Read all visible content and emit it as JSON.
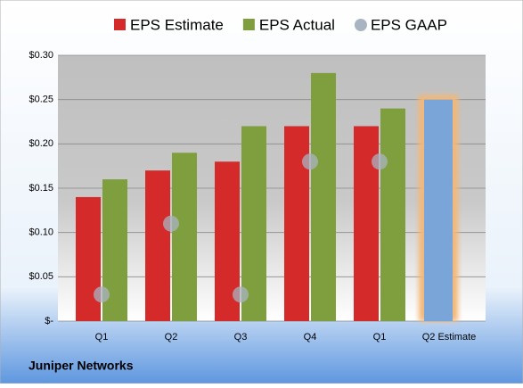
{
  "chart_data": {
    "type": "bar",
    "title": "Juniper Networks",
    "categories": [
      "Q1",
      "Q2",
      "Q3",
      "Q4",
      "Q1",
      "Q2 Estimate"
    ],
    "series": [
      {
        "name": "EPS Estimate",
        "color": "#d42a2a",
        "values": [
          0.14,
          0.17,
          0.18,
          0.22,
          0.22,
          null
        ]
      },
      {
        "name": "EPS Actual",
        "color": "#7f9e3e",
        "values": [
          0.16,
          0.19,
          0.22,
          0.28,
          0.24,
          null
        ]
      },
      {
        "name": "EPS GAAP",
        "color": "#a9b3c2",
        "values": [
          0.03,
          0.11,
          0.03,
          0.18,
          0.18,
          null
        ]
      }
    ],
    "projection": {
      "value": 0.25,
      "color": "#7aa5d8",
      "glow": "#f3b777"
    },
    "ylim": [
      0,
      0.3
    ],
    "yticks": [
      {
        "value": 0,
        "label": "$-"
      },
      {
        "value": 0.05,
        "label": "$0.05"
      },
      {
        "value": 0.1,
        "label": "$0.10"
      },
      {
        "value": 0.15,
        "label": "$0.15"
      },
      {
        "value": 0.2,
        "label": "$0.20"
      },
      {
        "value": 0.25,
        "label": "$0.25"
      },
      {
        "value": 0.3,
        "label": "$0.30"
      }
    ],
    "grid": true
  }
}
